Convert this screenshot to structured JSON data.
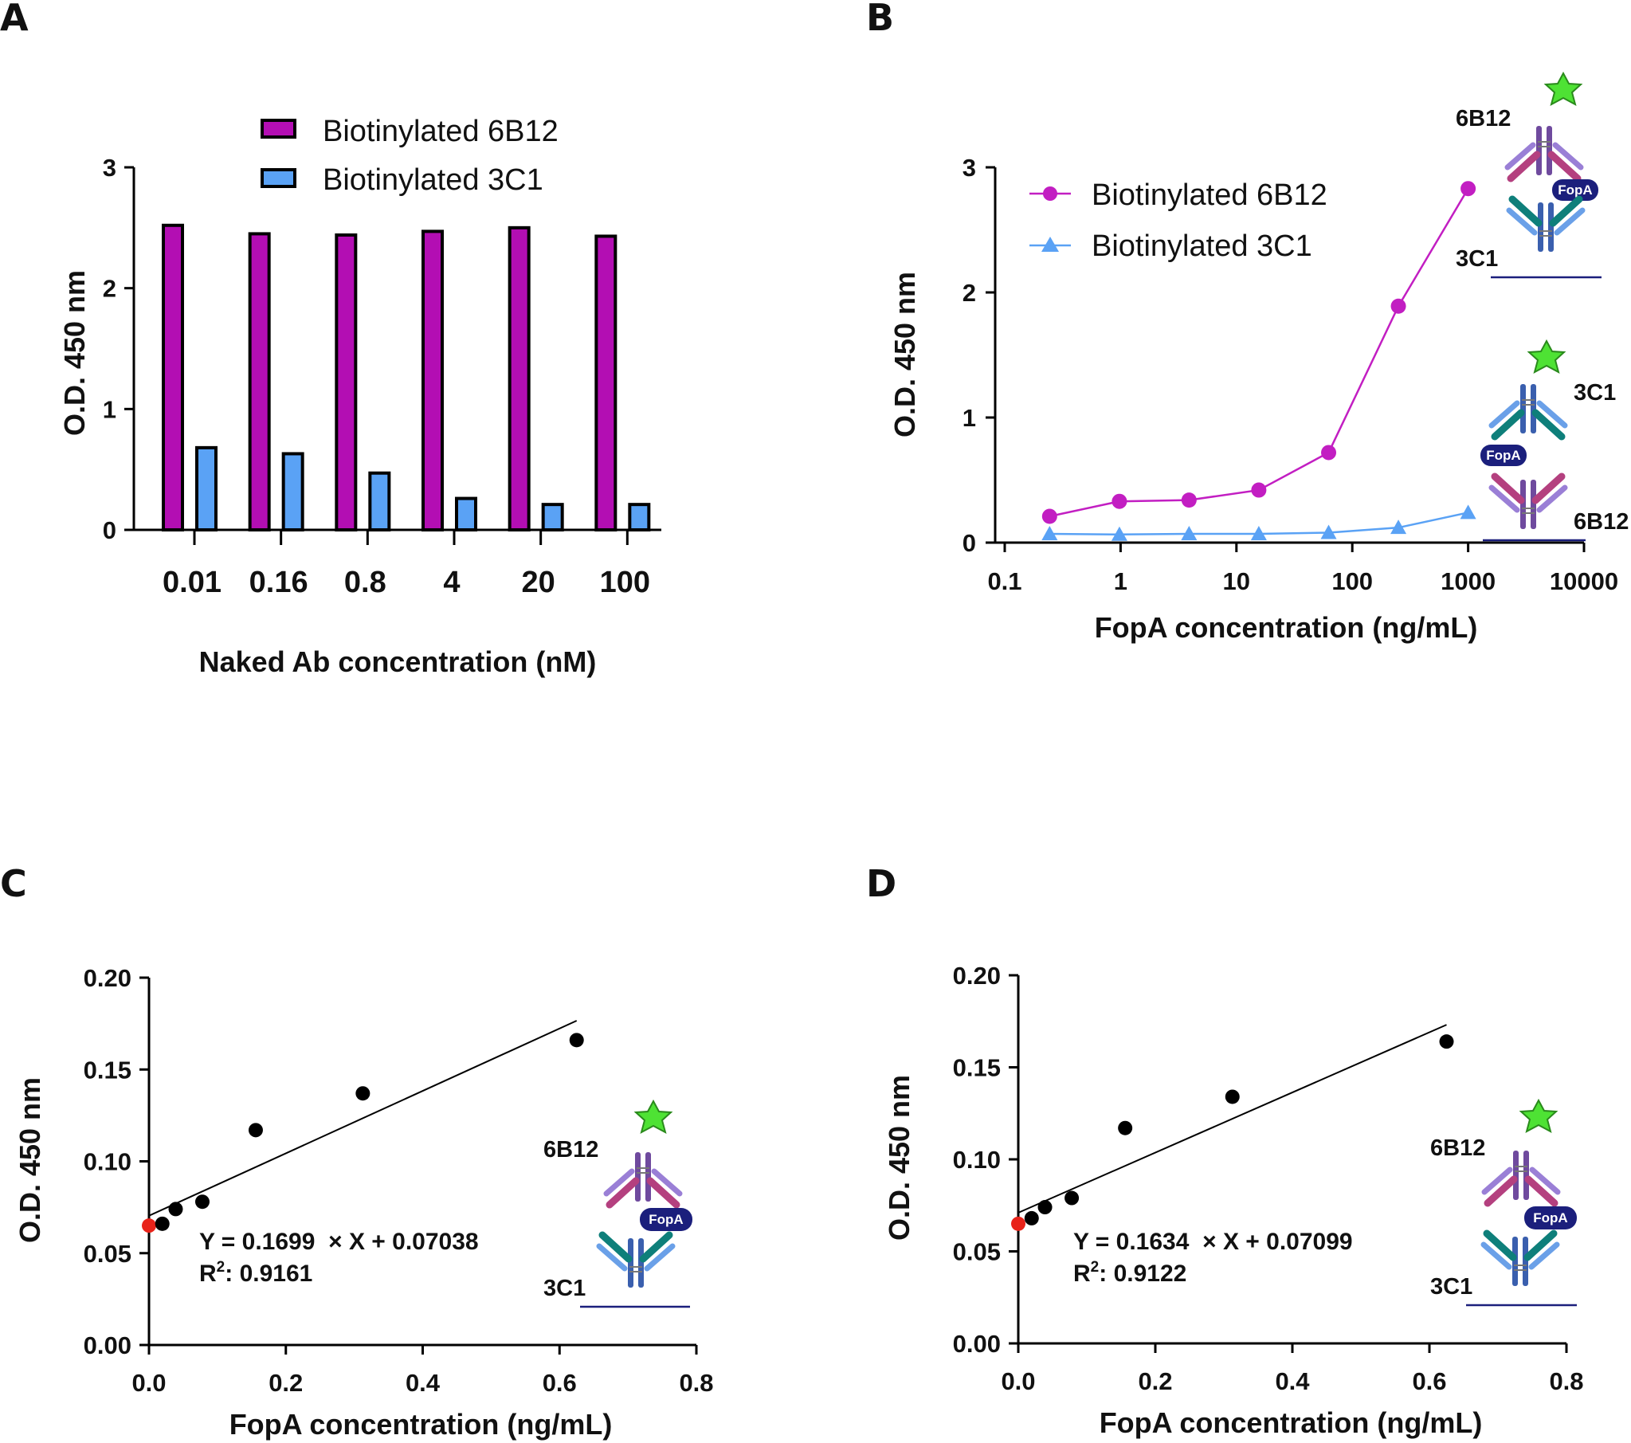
{
  "chart_data": [
    {
      "id": "A",
      "type": "bar",
      "panel_label": "A",
      "title": "",
      "xlabel": "Naked Ab concentration (nM)",
      "ylabel": "O.D. 450 nm",
      "ylim": [
        0,
        3
      ],
      "y_ticks": [
        "0",
        "1",
        "2",
        "3"
      ],
      "categories": [
        "0.01",
        "0.16",
        "0.8",
        "4",
        "20",
        "100"
      ],
      "series": [
        {
          "name": "Biotinylated 6B12",
          "color": "#b30eb3",
          "values": [
            2.52,
            2.45,
            2.44,
            2.47,
            2.5,
            2.43
          ]
        },
        {
          "name": "Biotinylated 3C1",
          "color": "#5aa2f5",
          "values": [
            0.68,
            0.63,
            0.47,
            0.26,
            0.21,
            0.21
          ]
        }
      ],
      "legend": {
        "position": "top"
      }
    },
    {
      "id": "B",
      "type": "line",
      "panel_label": "B",
      "xlabel": "FopA concentration (ng/mL)",
      "ylabel": "O.D. 450 nm",
      "xscale": "log",
      "xlim": [
        0.1,
        10000
      ],
      "x_ticks": [
        "0.1",
        "1",
        "10",
        "100",
        "1000",
        "10000"
      ],
      "ylim": [
        0,
        3
      ],
      "y_ticks": [
        "0",
        "1",
        "2",
        "3"
      ],
      "x": [
        0.244,
        0.977,
        3.9,
        15.6,
        62.5,
        250,
        1000
      ],
      "series": [
        {
          "name": "Biotinylated 6B12",
          "color": "#c21ec2",
          "marker": "circle",
          "values": [
            0.21,
            0.33,
            0.34,
            0.42,
            0.72,
            1.89,
            2.83
          ]
        },
        {
          "name": "Biotinylated 3C1",
          "color": "#5aa2f5",
          "marker": "triangle",
          "values": [
            0.07,
            0.065,
            0.07,
            0.07,
            0.08,
            0.12,
            0.24
          ]
        }
      ],
      "legend": {
        "position": "top-left"
      },
      "diagram_labels": {
        "top_detector": "6B12",
        "top_capture": "3C1",
        "bottom_detector": "3C1",
        "bottom_capture": "6B12",
        "antigen": "FopA"
      }
    },
    {
      "id": "C",
      "type": "scatter",
      "panel_label": "C",
      "xlabel": "FopA concentration (ng/mL)",
      "ylabel": "O.D. 450 nm",
      "xlim": [
        0,
        0.8
      ],
      "x_ticks": [
        "0.0",
        "0.2",
        "0.4",
        "0.6",
        "0.8"
      ],
      "ylim": [
        0,
        0.2
      ],
      "y_ticks": [
        "0.00",
        "0.05",
        "0.10",
        "0.15",
        "0.20"
      ],
      "x": [
        0.0,
        0.0195,
        0.039,
        0.078,
        0.156,
        0.3125,
        0.625
      ],
      "values": [
        0.065,
        0.066,
        0.074,
        0.078,
        0.117,
        0.137,
        0.166
      ],
      "highlight_color": "#e8231a",
      "point_color": "#000000",
      "fit": {
        "slope": 0.1699,
        "intercept": 0.07038,
        "x_range": [
          0,
          0.625
        ]
      },
      "equation": {
        "line1": "Y = 0.1699  × X + 0.07038",
        "r2_prefix": "R",
        "r2_sup": "2",
        "r2_value": ": 0.9161"
      },
      "diagram_labels": {
        "detector": "6B12",
        "capture": "3C1",
        "antigen": "FopA"
      }
    },
    {
      "id": "D",
      "type": "scatter",
      "panel_label": "D",
      "xlabel": "FopA concentration (ng/mL)",
      "ylabel": "O.D. 450 nm",
      "xlim": [
        0,
        0.8
      ],
      "x_ticks": [
        "0.0",
        "0.2",
        "0.4",
        "0.6",
        "0.8"
      ],
      "ylim": [
        0,
        0.2
      ],
      "y_ticks": [
        "0.00",
        "0.05",
        "0.10",
        "0.15",
        "0.20"
      ],
      "x": [
        0.0,
        0.0195,
        0.039,
        0.078,
        0.156,
        0.3125,
        0.625
      ],
      "values": [
        0.065,
        0.068,
        0.074,
        0.079,
        0.117,
        0.134,
        0.164
      ],
      "highlight_color": "#e8231a",
      "point_color": "#000000",
      "fit": {
        "slope": 0.1634,
        "intercept": 0.07099,
        "x_range": [
          0,
          0.625
        ]
      },
      "equation": {
        "line1": "Y = 0.1634  × X + 0.07099",
        "r2_prefix": "R",
        "r2_sup": "2",
        "r2_value": ": 0.9122"
      },
      "diagram_labels": {
        "detector": "6B12",
        "capture": "3C1",
        "antigen": "FopA"
      }
    }
  ]
}
